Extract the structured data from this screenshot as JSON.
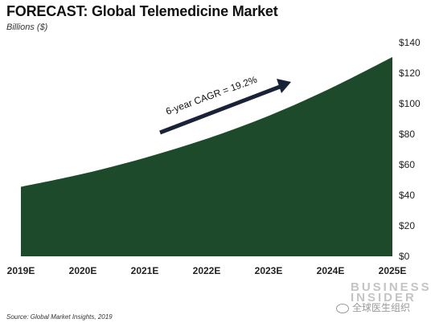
{
  "chart_data": {
    "type": "area",
    "title": "FORECAST: Global Telemedicine Market",
    "subtitle": "Billions ($)",
    "categories": [
      "2019E",
      "2020E",
      "2021E",
      "2022E",
      "2023E",
      "2024E",
      "2025E"
    ],
    "values": [
      45.5,
      54,
      64.5,
      77,
      92,
      110,
      130.5
    ],
    "ylim": [
      0,
      140
    ],
    "yticks": [
      "$0",
      "$20",
      "$40",
      "$60",
      "$80",
      "$100",
      "$120",
      "$140"
    ],
    "y_axis_position": "right",
    "grid": false,
    "legend": "none",
    "annotation": "6-year CAGR = 19.2%",
    "colors": {
      "area": "#1e4a2c",
      "arrow": "#1a2238"
    }
  },
  "source": "Source: Global Market Insights, 2019",
  "brand": [
    "BUSINESS",
    "INSIDER"
  ],
  "watermark": "全球医生组织"
}
